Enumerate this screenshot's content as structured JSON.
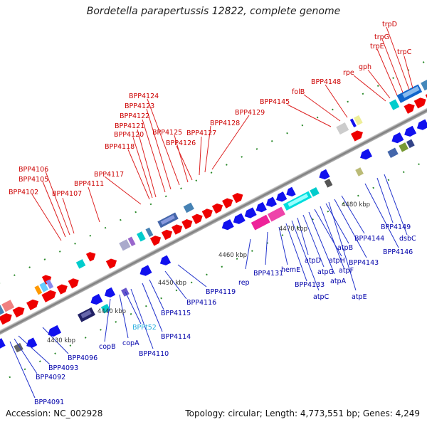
{
  "title": "Bordetella parapertussis 12822, complete genome",
  "footer": {
    "accession": "Accession: NC_002928",
    "stats": "Topology: circular; Length: 4,773,551 bp; Genes: 4,249"
  },
  "kbp_labels": [
    "4430 kbp",
    "4440 kbp",
    "4450 kbp",
    "4460 kbp",
    "4470 kbp",
    "4480 kbp"
  ],
  "top_labels": [
    "BPP4102",
    "BPP4105",
    "BPP4106",
    "BPP4107",
    "BPP4111",
    "BPP4117",
    "BPP4118",
    "BPP4120",
    "BPP4121",
    "BPP4122",
    "BPP4123",
    "BPP4124",
    "BPP4125",
    "BPP4126",
    "BPP4127",
    "BPP4128",
    "BPP4129",
    "BPP4145",
    "folB",
    "BPP4148",
    "rpe",
    "gph",
    "trpE",
    "trpG",
    "trpD",
    "trpC"
  ],
  "bottom_labels": [
    "BPP4091",
    "BPP4092",
    "BPP4093",
    "BPP4096",
    "copB",
    "copA",
    "BPPt52",
    "BPP4110",
    "BPP4114",
    "BPP4115",
    "BPP4116",
    "BPP4119",
    "rep",
    "BPP4131",
    "hemE",
    "BPP4133",
    "atpC",
    "atpD",
    "atpG",
    "atpA",
    "atpH",
    "atpF",
    "atpB",
    "atpE",
    "BPP4143",
    "BPP4144",
    "BPP4146",
    "BPP4149",
    "dsbC"
  ],
  "colors": {
    "top_strand_gene": "#ee0000",
    "bottom_strand_gene": "#1111ee",
    "top_label": "#cc0000",
    "bottom_label": "#0000aa",
    "rna_label": "#22aadd",
    "backbone": "#888888"
  }
}
